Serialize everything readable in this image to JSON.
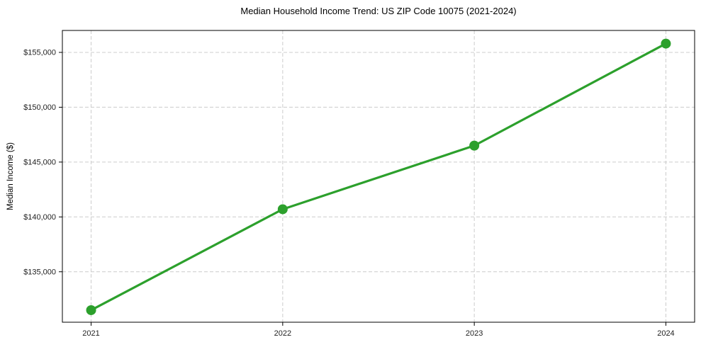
{
  "chart_data": {
    "type": "line",
    "title": "Median Household Income Trend: US ZIP Code 10075 (2021-2024)",
    "xlabel": "",
    "ylabel": "Median Income ($)",
    "x": [
      2021,
      2022,
      2023,
      2024
    ],
    "x_tick_labels": [
      "2021",
      "2022",
      "2023",
      "2024"
    ],
    "values": [
      131500,
      140700,
      146500,
      155800
    ],
    "yticks": [
      135000,
      140000,
      145000,
      150000,
      155000
    ],
    "y_tick_labels": [
      "$135,000",
      "$140,000",
      "$145,000",
      "$150,000",
      "$155,000"
    ],
    "xlim": [
      2020.85,
      2024.15
    ],
    "ylim": [
      130400,
      157000
    ],
    "grid": true,
    "grid_style": "dashed",
    "legend": false,
    "line_color": "#2ca02c",
    "marker": "circle",
    "marker_radius": 7,
    "line_width": 3.2,
    "grid_color": "#cccccc",
    "spine_color": "#000000",
    "background_color": "#ffffff",
    "text_color": "#1f1f1f"
  }
}
